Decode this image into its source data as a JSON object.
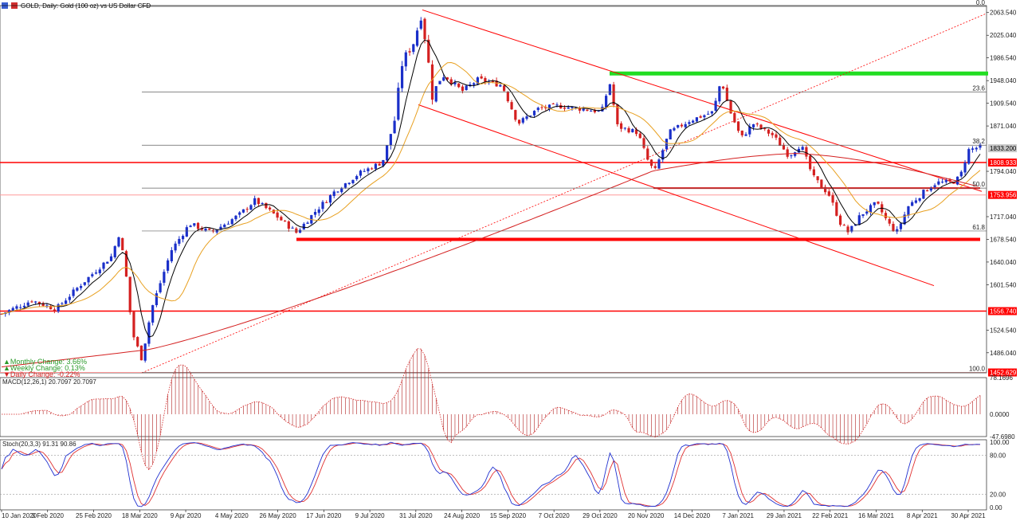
{
  "title": "GOLD, Daily:  Gold (100 oz) vs US Dollar CFD",
  "colors": {
    "bull": "#1a2fc9",
    "bear": "#d42020",
    "ma_fast": "#000000",
    "ma_mid": "#e8a020",
    "ma_slow": "#d42020",
    "level": "#ff0000",
    "target_zone": "#22dd22",
    "fib": "#606060",
    "macd_hist": "#b02020",
    "macd_signal": "#d42020",
    "stoch_main": "#2030d0",
    "stoch_signal": "#e03030"
  },
  "info_panel": {
    "monthly": "Monthly Change: 3.66%",
    "weekly": "Weekly Change: 0.13%",
    "daily": "Daily Change: -0.22%"
  },
  "price_scale": [
    "2063.540",
    "2025.040",
    "1986.540",
    "1948.040",
    "1909.540",
    "1871.040",
    "1794.040",
    "1717.040",
    "1678.540",
    "1640.040",
    "1601.540",
    "1524.540",
    "1486.040"
  ],
  "price_tags": [
    {
      "id": "current",
      "label": "1833.200",
      "price": 1833.2,
      "bg": "#c8c8c8",
      "fg": "#000000"
    },
    {
      "id": "res1",
      "label": "1808.933",
      "price": 1808.933,
      "bg": "#ff0000",
      "fg": "#ffffff"
    },
    {
      "id": "res2",
      "label": "1753.956",
      "price": 1753.956,
      "bg": "#ff0000",
      "fg": "#ffffff"
    },
    {
      "id": "sup1",
      "label": "1556.740",
      "price": 1556.74,
      "bg": "#ff0000",
      "fg": "#ffffff"
    },
    {
      "id": "low",
      "label": "1452.629",
      "price": 1452.629,
      "bg": "#ff0000",
      "fg": "#ffffff"
    }
  ],
  "fib_levels": [
    {
      "label": "0.0",
      "price": 2074.0
    },
    {
      "label": "23.6",
      "price": 1928.5
    },
    {
      "label": "38.2",
      "price": 1838.4
    },
    {
      "label": "50.0",
      "price": 1765.5
    },
    {
      "label": "61.8",
      "price": 1692.8
    },
    {
      "label": "100.0",
      "price": 1452.6
    }
  ],
  "macd": {
    "label": "MACD(12,26,1) 20.7097 20.7097",
    "scale": [
      "78.1696",
      "0.0000",
      "-47.6980"
    ]
  },
  "stoch": {
    "label": "Stoch(20,3,3) 91.31 90.86",
    "scale": [
      "100.00",
      "80.00",
      "20.00",
      "0.00"
    ]
  },
  "time_labels": [
    "10 Jan 2020",
    "3 Feb 2020",
    "25 Feb 2020",
    "18 Mar 2020",
    "9 Apr 2020",
    "4 May 2020",
    "26 May 2020",
    "17 Jun 2020",
    "9 Jul 2020",
    "31 Jul 2020",
    "24 Aug 2020",
    "15 Sep 2020",
    "7 Oct 2020",
    "29 Oct 2020",
    "20 Nov 2020",
    "14 Dec 2020",
    "7 Jan 2021",
    "29 Jan 2021",
    "22 Feb 2021",
    "16 Mar 2021",
    "8 Apr 2021",
    "30 Apr 2021"
  ],
  "chart_data": {
    "type": "candlestick",
    "title": "GOLD, Daily:  Gold (100 oz) vs US Dollar CFD",
    "ylim": [
      1452,
      2075
    ],
    "x": [
      "10 Jan 2020",
      "3 Feb 2020",
      "25 Feb 2020",
      "18 Mar 2020",
      "9 Apr 2020",
      "4 May 2020",
      "26 May 2020",
      "17 Jun 2020",
      "9 Jul 2020",
      "31 Jul 2020",
      "24 Aug 2020",
      "15 Sep 2020",
      "7 Oct 2020",
      "29 Oct 2020",
      "20 Nov 2020",
      "14 Dec 2020",
      "7 Jan 2021",
      "29 Jan 2021",
      "22 Feb 2021",
      "16 Mar 2021",
      "8 Apr 2021",
      "30 Apr 2021"
    ],
    "close": [
      1555,
      1576,
      1640,
      1480,
      1680,
      1705,
      1715,
      1730,
      1810,
      1975,
      1935,
      1915,
      1905,
      1895,
      1818,
      1880,
      1910,
      1845,
      1795,
      1735,
      1745,
      1835
    ],
    "horizontal_levels": [
      1808.933,
      1753.956,
      1678.5,
      1556.74
    ],
    "target_zone_price": 1960,
    "grid": false,
    "legend": "none"
  }
}
